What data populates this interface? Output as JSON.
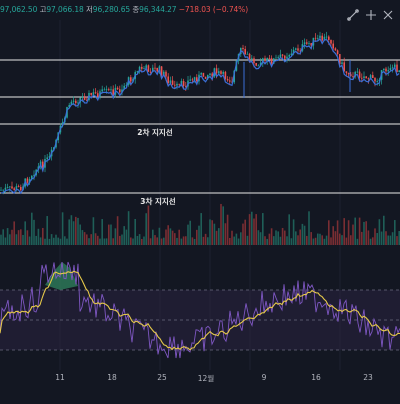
{
  "header": {
    "open_label": "",
    "open_value": "97,062.50",
    "high_label": "고",
    "high_value": "97,066.18",
    "low_label": "저",
    "low_value": "96,280.65",
    "close_label": "종",
    "close_value": "96,344.27",
    "change_value": "−718.03 (−0.74%)"
  },
  "toolbar": {
    "draw_icon": "trend-line-icon",
    "shrink_icon": "collapse-arrows-icon",
    "expand_icon": "expand-arrows-icon"
  },
  "levels": {
    "second_support_label": "2차 지지선",
    "third_support_label": "3차 지지선"
  },
  "x_axis": {
    "ticks": [
      "11",
      "18",
      "25",
      "12월",
      "9",
      "16",
      "23"
    ]
  },
  "colors": {
    "up": "#26a69a",
    "down": "#ef5350",
    "ma": "#3b6fd8",
    "rsi": "#7e57c2",
    "rsi_ma": "#e6c94a"
  },
  "chart_data": {
    "type": "candlestick",
    "price_series_trend": [
      88,
      88.5,
      89,
      89.2,
      89.5,
      90.5,
      92,
      94,
      95,
      96,
      97,
      97.5,
      98,
      98.5,
      99,
      101,
      103,
      104,
      104.5,
      105
    ],
    "horizontal_levels": [
      "2차 지지선",
      "3차 지지선"
    ],
    "indicators": [
      "Volume",
      "RSI"
    ]
  }
}
